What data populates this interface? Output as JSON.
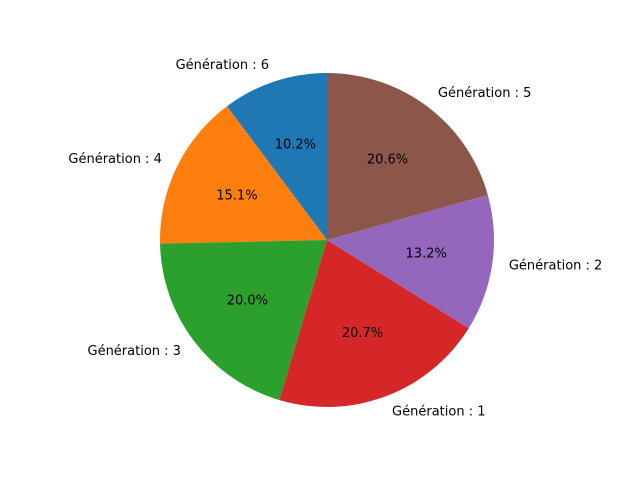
{
  "chart_data": {
    "type": "pie",
    "title": "",
    "start_angle_deg": 90,
    "direction": "counterclockwise",
    "slices": [
      {
        "label": "Génération : 6",
        "value": 10.2,
        "pct_label": "10.2%",
        "color": "#1f77b4"
      },
      {
        "label": "Génération : 4",
        "value": 15.1,
        "pct_label": "15.1%",
        "color": "#ff7f0e"
      },
      {
        "label": "Génération : 3",
        "value": 20.0,
        "pct_label": "20.0%",
        "color": "#2ca02c"
      },
      {
        "label": "Génération : 1",
        "value": 20.7,
        "pct_label": "20.7%",
        "color": "#d62728"
      },
      {
        "label": "Génération : 2",
        "value": 13.2,
        "pct_label": "13.2%",
        "color": "#9467bd"
      },
      {
        "label": "Génération : 5",
        "value": 20.6,
        "pct_label": "20.6%",
        "color": "#8c564b"
      }
    ]
  }
}
